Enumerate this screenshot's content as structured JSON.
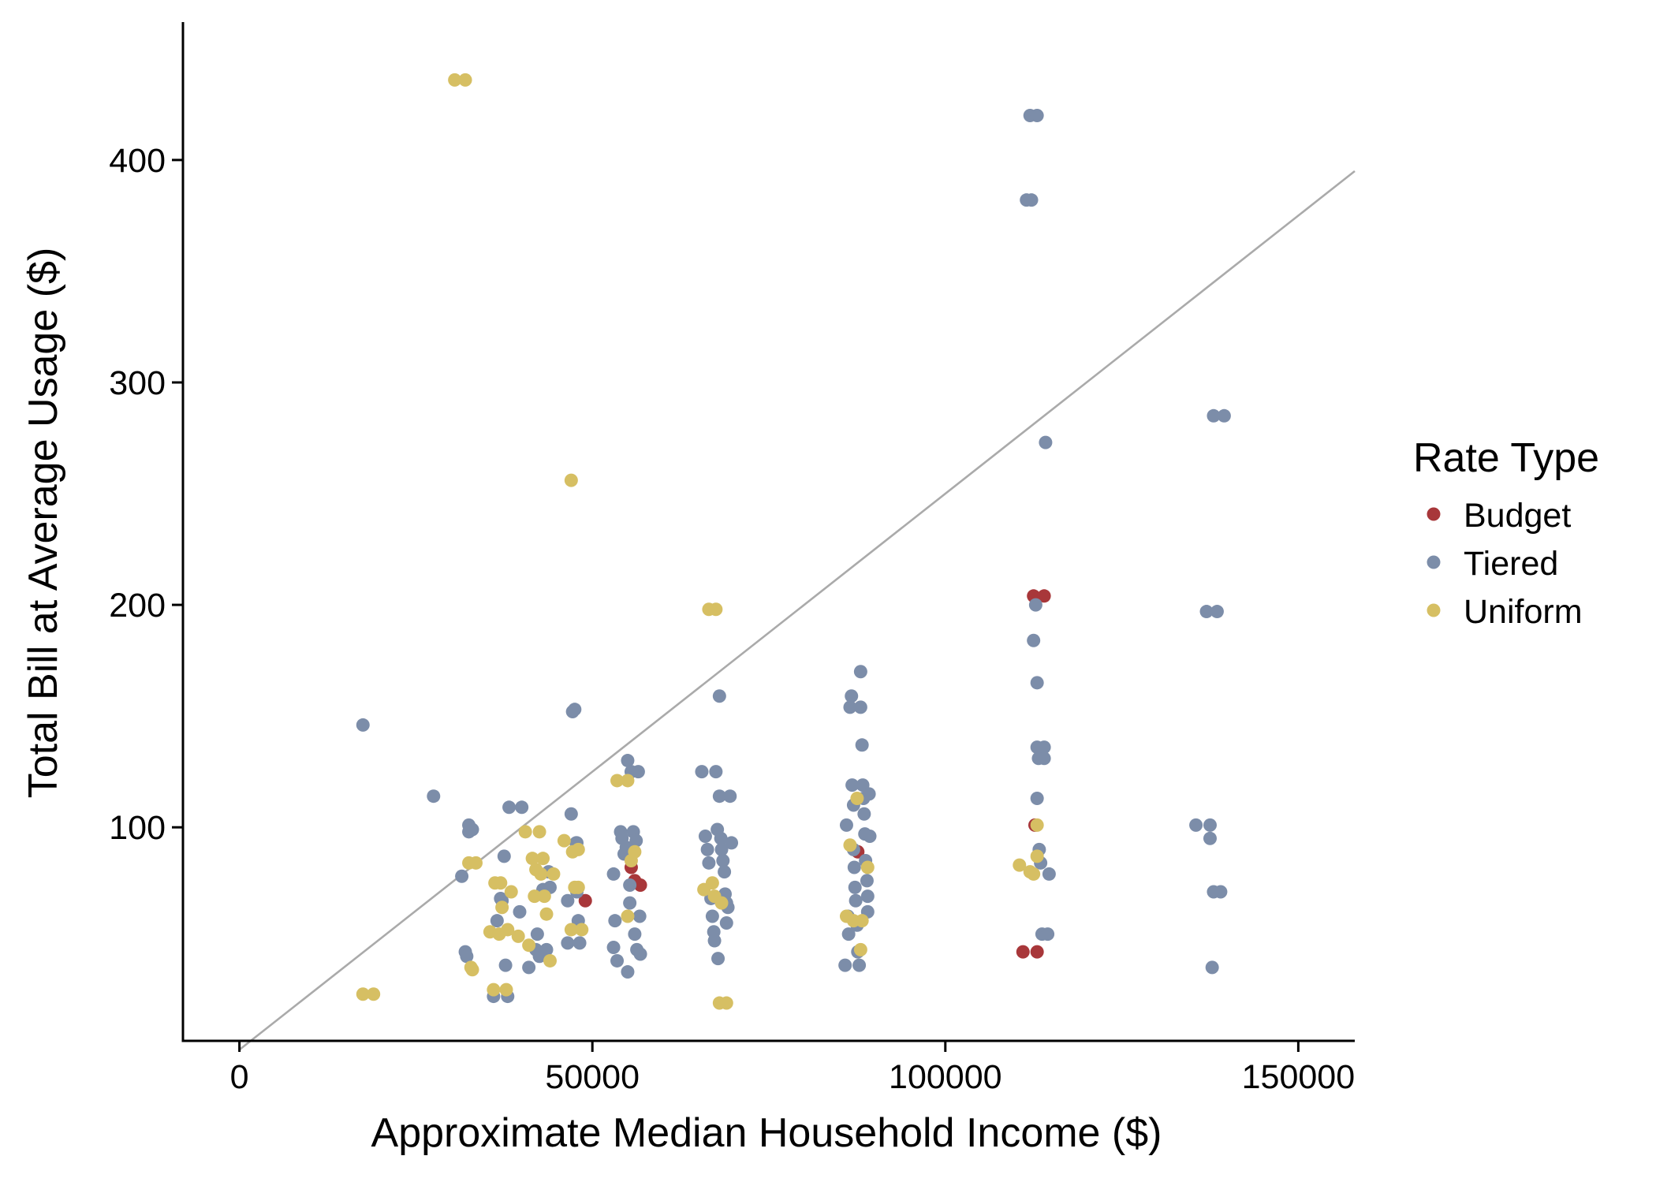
{
  "chart_data": {
    "type": "scatter",
    "title": "",
    "xlabel": "Approximate Median Household Income ($)",
    "ylabel": "Total Bill at Average Usage ($)",
    "xlim": [
      -8000,
      158000
    ],
    "ylim": [
      4,
      462
    ],
    "x_ticks": [
      0,
      50000,
      100000,
      150000
    ],
    "x_tick_labels": [
      "0",
      "50000",
      "100000",
      "150000"
    ],
    "y_ticks": [
      100,
      200,
      300,
      400
    ],
    "y_tick_labels": [
      "100",
      "200",
      "300",
      "400"
    ],
    "grid": false,
    "legend": {
      "title": "Rate Type",
      "position": "right"
    },
    "reference_line": {
      "slope": 0.0025,
      "intercept": 0,
      "color": "#AAAAAA",
      "description": "bill = 3% of monthly income"
    },
    "series": [
      {
        "name": "Budget",
        "color": "#A8373A",
        "points": [
          [
            49000,
            67
          ],
          [
            55500,
            82
          ],
          [
            56000,
            76
          ],
          [
            56800,
            74
          ],
          [
            87600,
            89
          ],
          [
            111000,
            44
          ],
          [
            113000,
            44
          ],
          [
            112500,
            204
          ],
          [
            114000,
            204
          ],
          [
            112700,
            101
          ]
        ]
      },
      {
        "name": "Tiered",
        "color": "#7C8DA9",
        "points": [
          [
            17500,
            146
          ],
          [
            27500,
            114
          ],
          [
            31500,
            78
          ],
          [
            32000,
            44
          ],
          [
            32200,
            42
          ],
          [
            32500,
            101
          ],
          [
            32500,
            98
          ],
          [
            33000,
            99
          ],
          [
            36000,
            24
          ],
          [
            36500,
            58
          ],
          [
            37000,
            68
          ],
          [
            37200,
            67
          ],
          [
            37500,
            87
          ],
          [
            37700,
            38
          ],
          [
            38000,
            24
          ],
          [
            38200,
            109
          ],
          [
            40000,
            109
          ],
          [
            39700,
            62
          ],
          [
            41000,
            37
          ],
          [
            42000,
            45
          ],
          [
            42200,
            52
          ],
          [
            42500,
            42
          ],
          [
            43000,
            72
          ],
          [
            43500,
            45
          ],
          [
            44000,
            73
          ],
          [
            43800,
            80
          ],
          [
            46500,
            67
          ],
          [
            46500,
            48
          ],
          [
            47000,
            106
          ],
          [
            47200,
            152
          ],
          [
            47500,
            153
          ],
          [
            47700,
            93
          ],
          [
            47800,
            71
          ],
          [
            48000,
            58
          ],
          [
            48200,
            48
          ],
          [
            47800,
            93
          ],
          [
            53000,
            79
          ],
          [
            53000,
            46
          ],
          [
            53200,
            58
          ],
          [
            53500,
            40
          ],
          [
            54000,
            98
          ],
          [
            54200,
            95
          ],
          [
            54500,
            88
          ],
          [
            54800,
            91
          ],
          [
            55000,
            130
          ],
          [
            55000,
            35
          ],
          [
            55300,
            66
          ],
          [
            55500,
            125
          ],
          [
            55800,
            98
          ],
          [
            56000,
            52
          ],
          [
            56200,
            94
          ],
          [
            56300,
            45
          ],
          [
            56500,
            125
          ],
          [
            56700,
            60
          ],
          [
            56800,
            43
          ],
          [
            55300,
            74
          ],
          [
            65500,
            125
          ],
          [
            66000,
            96
          ],
          [
            66300,
            90
          ],
          [
            66500,
            84
          ],
          [
            66800,
            68
          ],
          [
            67000,
            60
          ],
          [
            67200,
            53
          ],
          [
            67300,
            49
          ],
          [
            67500,
            125
          ],
          [
            67700,
            99
          ],
          [
            67800,
            41
          ],
          [
            68000,
            159
          ],
          [
            68000,
            114
          ],
          [
            68200,
            95
          ],
          [
            68300,
            90
          ],
          [
            68500,
            85
          ],
          [
            68700,
            80
          ],
          [
            68800,
            70
          ],
          [
            69000,
            66
          ],
          [
            69000,
            57
          ],
          [
            69200,
            64
          ],
          [
            69500,
            114
          ],
          [
            69700,
            93
          ],
          [
            85800,
            38
          ],
          [
            86000,
            101
          ],
          [
            86200,
            60
          ],
          [
            86300,
            52
          ],
          [
            86500,
            154
          ],
          [
            86700,
            159
          ],
          [
            86800,
            119
          ],
          [
            87000,
            110
          ],
          [
            87000,
            90
          ],
          [
            87100,
            82
          ],
          [
            87200,
            73
          ],
          [
            87300,
            67
          ],
          [
            87500,
            56
          ],
          [
            87600,
            44
          ],
          [
            87800,
            38
          ],
          [
            88000,
            170
          ],
          [
            88000,
            154
          ],
          [
            88200,
            137
          ],
          [
            88300,
            119
          ],
          [
            88400,
            113
          ],
          [
            88500,
            106
          ],
          [
            88600,
            97
          ],
          [
            88700,
            85
          ],
          [
            88900,
            76
          ],
          [
            89000,
            69
          ],
          [
            89000,
            62
          ],
          [
            89200,
            115
          ],
          [
            89300,
            96
          ],
          [
            111500,
            382
          ],
          [
            112000,
            420
          ],
          [
            112200,
            382
          ],
          [
            112500,
            184
          ],
          [
            112800,
            200
          ],
          [
            113000,
            420
          ],
          [
            113000,
            165
          ],
          [
            113000,
            136
          ],
          [
            113000,
            113
          ],
          [
            113200,
            131
          ],
          [
            113300,
            90
          ],
          [
            113500,
            84
          ],
          [
            113700,
            52
          ],
          [
            114000,
            136
          ],
          [
            114000,
            131
          ],
          [
            114200,
            273
          ],
          [
            114500,
            52
          ],
          [
            114700,
            79
          ],
          [
            135500,
            101
          ],
          [
            137000,
            197
          ],
          [
            137500,
            101
          ],
          [
            137500,
            95
          ],
          [
            137800,
            37
          ],
          [
            138000,
            71
          ],
          [
            138000,
            285
          ],
          [
            138500,
            197
          ],
          [
            139000,
            71
          ],
          [
            139500,
            285
          ]
        ]
      },
      {
        "name": "Uniform",
        "color": "#D6BF63",
        "points": [
          [
            17500,
            25
          ],
          [
            19000,
            25
          ],
          [
            30500,
            436
          ],
          [
            32000,
            436
          ],
          [
            32500,
            84
          ],
          [
            32800,
            37
          ],
          [
            33000,
            36
          ],
          [
            33500,
            84
          ],
          [
            35500,
            53
          ],
          [
            36000,
            27
          ],
          [
            36200,
            75
          ],
          [
            36800,
            52
          ],
          [
            37000,
            75
          ],
          [
            37200,
            64
          ],
          [
            37800,
            27
          ],
          [
            38000,
            54
          ],
          [
            38500,
            71
          ],
          [
            39500,
            51
          ],
          [
            40500,
            98
          ],
          [
            41000,
            47
          ],
          [
            41500,
            86
          ],
          [
            41800,
            69
          ],
          [
            42000,
            81
          ],
          [
            42500,
            98
          ],
          [
            42700,
            79
          ],
          [
            43000,
            86
          ],
          [
            43200,
            69
          ],
          [
            43500,
            61
          ],
          [
            44000,
            40
          ],
          [
            44500,
            79
          ],
          [
            46000,
            94
          ],
          [
            47000,
            54
          ],
          [
            47000,
            256
          ],
          [
            47200,
            89
          ],
          [
            47500,
            73
          ],
          [
            48000,
            73
          ],
          [
            48000,
            90
          ],
          [
            48500,
            54
          ],
          [
            53500,
            121
          ],
          [
            55000,
            121
          ],
          [
            55000,
            60
          ],
          [
            55500,
            85
          ],
          [
            56000,
            89
          ],
          [
            65800,
            72
          ],
          [
            66500,
            198
          ],
          [
            67000,
            75
          ],
          [
            67300,
            69
          ],
          [
            67500,
            198
          ],
          [
            68000,
            21
          ],
          [
            68300,
            66
          ],
          [
            69000,
            21
          ],
          [
            86000,
            60
          ],
          [
            86500,
            92
          ],
          [
            87000,
            58
          ],
          [
            87500,
            113
          ],
          [
            88000,
            45
          ],
          [
            88200,
            58
          ],
          [
            89000,
            82
          ],
          [
            110500,
            83
          ],
          [
            112000,
            80
          ],
          [
            112500,
            79
          ],
          [
            113000,
            101
          ],
          [
            113000,
            87
          ]
        ]
      }
    ]
  }
}
